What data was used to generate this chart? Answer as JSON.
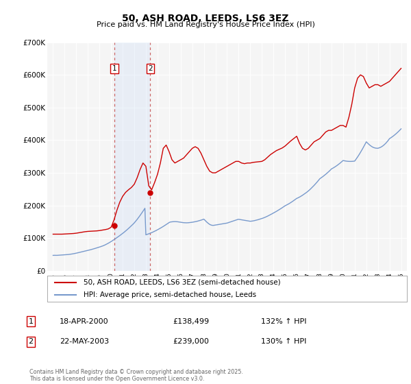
{
  "title": "50, ASH ROAD, LEEDS, LS6 3EZ",
  "subtitle": "Price paid vs. HM Land Registry's House Price Index (HPI)",
  "background_color": "#ffffff",
  "plot_bg_color": "#f5f5f5",
  "grid_color": "#ffffff",
  "red_line_color": "#cc0000",
  "blue_line_color": "#7799cc",
  "shade_color": "#ccddf5",
  "vline_color": "#cc6666",
  "sale1": {
    "date": "18-APR-2000",
    "price": 138499,
    "hpi_pct": "132%",
    "label": "1",
    "year": 2000.29
  },
  "sale2": {
    "date": "22-MAY-2003",
    "price": 239000,
    "hpi_pct": "130%",
    "label": "2",
    "year": 2003.38
  },
  "ylim": [
    0,
    700000
  ],
  "yticks": [
    0,
    100000,
    200000,
    300000,
    400000,
    500000,
    600000,
    700000
  ],
  "ytick_labels": [
    "£0",
    "£100K",
    "£200K",
    "£300K",
    "£400K",
    "£500K",
    "£600K",
    "£700K"
  ],
  "xlim": [
    1994.5,
    2025.5
  ],
  "xtick_years": [
    1995,
    1996,
    1997,
    1998,
    1999,
    2000,
    2001,
    2002,
    2003,
    2004,
    2005,
    2006,
    2007,
    2008,
    2009,
    2010,
    2011,
    2012,
    2013,
    2014,
    2015,
    2016,
    2017,
    2018,
    2019,
    2020,
    2021,
    2022,
    2023,
    2024,
    2025
  ],
  "legend_label_red": "50, ASH ROAD, LEEDS, LS6 3EZ (semi-detached house)",
  "legend_label_blue": "HPI: Average price, semi-detached house, Leeds",
  "footnote": "Contains HM Land Registry data © Crown copyright and database right 2025.\nThis data is licensed under the Open Government Licence v3.0.",
  "hpi_years": [
    1995.0,
    1995.083,
    1995.167,
    1995.25,
    1995.333,
    1995.417,
    1995.5,
    1995.583,
    1995.667,
    1995.75,
    1995.833,
    1995.917,
    1996.0,
    1996.083,
    1996.167,
    1996.25,
    1996.333,
    1996.417,
    1996.5,
    1996.583,
    1996.667,
    1996.75,
    1996.833,
    1996.917,
    1997.0,
    1997.083,
    1997.167,
    1997.25,
    1997.333,
    1997.417,
    1997.5,
    1997.583,
    1997.667,
    1997.75,
    1997.833,
    1997.917,
    1998.0,
    1998.083,
    1998.167,
    1998.25,
    1998.333,
    1998.417,
    1998.5,
    1998.583,
    1998.667,
    1998.75,
    1998.833,
    1998.917,
    1999.0,
    1999.083,
    1999.167,
    1999.25,
    1999.333,
    1999.417,
    1999.5,
    1999.583,
    1999.667,
    1999.75,
    1999.833,
    1999.917,
    2000.0,
    2000.083,
    2000.167,
    2000.25,
    2000.333,
    2000.417,
    2000.5,
    2000.583,
    2000.667,
    2000.75,
    2000.833,
    2000.917,
    2001.0,
    2001.083,
    2001.167,
    2001.25,
    2001.333,
    2001.417,
    2001.5,
    2001.583,
    2001.667,
    2001.75,
    2001.833,
    2001.917,
    2002.0,
    2002.083,
    2002.167,
    2002.25,
    2002.333,
    2002.417,
    2002.5,
    2002.583,
    2002.667,
    2002.75,
    2002.833,
    2002.917,
    2003.0,
    2003.083,
    2003.167,
    2003.25,
    2003.333,
    2003.417,
    2003.5,
    2003.583,
    2003.667,
    2003.75,
    2003.833,
    2003.917,
    2004.0,
    2004.083,
    2004.167,
    2004.25,
    2004.333,
    2004.417,
    2004.5,
    2004.583,
    2004.667,
    2004.75,
    2004.833,
    2004.917,
    2005.0,
    2005.083,
    2005.167,
    2005.25,
    2005.333,
    2005.417,
    2005.5,
    2005.583,
    2005.667,
    2005.75,
    2005.833,
    2005.917,
    2006.0,
    2006.083,
    2006.167,
    2006.25,
    2006.333,
    2006.417,
    2006.5,
    2006.583,
    2006.667,
    2006.75,
    2006.833,
    2006.917,
    2007.0,
    2007.083,
    2007.167,
    2007.25,
    2007.333,
    2007.417,
    2007.5,
    2007.583,
    2007.667,
    2007.75,
    2007.833,
    2007.917,
    2008.0,
    2008.083,
    2008.167,
    2008.25,
    2008.333,
    2008.417,
    2008.5,
    2008.583,
    2008.667,
    2008.75,
    2008.833,
    2008.917,
    2009.0,
    2009.083,
    2009.167,
    2009.25,
    2009.333,
    2009.417,
    2009.5,
    2009.583,
    2009.667,
    2009.75,
    2009.833,
    2009.917,
    2010.0,
    2010.083,
    2010.167,
    2010.25,
    2010.333,
    2010.417,
    2010.5,
    2010.583,
    2010.667,
    2010.75,
    2010.833,
    2010.917,
    2011.0,
    2011.083,
    2011.167,
    2011.25,
    2011.333,
    2011.417,
    2011.5,
    2011.583,
    2011.667,
    2011.75,
    2011.833,
    2011.917,
    2012.0,
    2012.083,
    2012.167,
    2012.25,
    2012.333,
    2012.417,
    2012.5,
    2012.583,
    2012.667,
    2012.75,
    2012.833,
    2012.917,
    2013.0,
    2013.083,
    2013.167,
    2013.25,
    2013.333,
    2013.417,
    2013.5,
    2013.583,
    2013.667,
    2013.75,
    2013.833,
    2013.917,
    2014.0,
    2014.083,
    2014.167,
    2014.25,
    2014.333,
    2014.417,
    2014.5,
    2014.583,
    2014.667,
    2014.75,
    2014.833,
    2014.917,
    2015.0,
    2015.083,
    2015.167,
    2015.25,
    2015.333,
    2015.417,
    2015.5,
    2015.583,
    2015.667,
    2015.75,
    2015.833,
    2015.917,
    2016.0,
    2016.083,
    2016.167,
    2016.25,
    2016.333,
    2016.417,
    2016.5,
    2016.583,
    2016.667,
    2016.75,
    2016.833,
    2016.917,
    2017.0,
    2017.083,
    2017.167,
    2017.25,
    2017.333,
    2017.417,
    2017.5,
    2017.583,
    2017.667,
    2017.75,
    2017.833,
    2017.917,
    2018.0,
    2018.083,
    2018.167,
    2018.25,
    2018.333,
    2018.417,
    2018.5,
    2018.583,
    2018.667,
    2018.75,
    2018.833,
    2018.917,
    2019.0,
    2019.083,
    2019.167,
    2019.25,
    2019.333,
    2019.417,
    2019.5,
    2019.583,
    2019.667,
    2019.75,
    2019.833,
    2019.917,
    2020.0,
    2020.083,
    2020.167,
    2020.25,
    2020.333,
    2020.417,
    2020.5,
    2020.583,
    2020.667,
    2020.75,
    2020.833,
    2020.917,
    2021.0,
    2021.083,
    2021.167,
    2021.25,
    2021.333,
    2021.417,
    2021.5,
    2021.583,
    2021.667,
    2021.75,
    2021.833,
    2021.917,
    2022.0,
    2022.083,
    2022.167,
    2022.25,
    2022.333,
    2022.417,
    2022.5,
    2022.583,
    2022.667,
    2022.75,
    2022.833,
    2022.917,
    2023.0,
    2023.083,
    2023.167,
    2023.25,
    2023.333,
    2023.417,
    2023.5,
    2023.583,
    2023.667,
    2023.75,
    2023.833,
    2023.917,
    2024.0,
    2024.083,
    2024.167,
    2024.25,
    2024.333,
    2024.417,
    2024.5,
    2024.583,
    2024.667,
    2024.75,
    2024.833,
    2024.917,
    2025.0
  ],
  "hpi_values": [
    47000,
    47200,
    47100,
    47000,
    47100,
    47300,
    47500,
    47800,
    48000,
    48100,
    48200,
    48400,
    48600,
    48900,
    49100,
    49400,
    49700,
    50100,
    50500,
    51000,
    51500,
    52000,
    52600,
    53200,
    53800,
    54500,
    55200,
    55900,
    56600,
    57300,
    58000,
    58700,
    59400,
    60100,
    60800,
    61500,
    62200,
    62900,
    63700,
    64500,
    65300,
    66100,
    67000,
    67900,
    68800,
    69700,
    70600,
    71500,
    72500,
    73500,
    74500,
    75500,
    76700,
    78000,
    79400,
    80900,
    82400,
    84000,
    85700,
    87500,
    89300,
    91200,
    93100,
    95100,
    97100,
    99200,
    101300,
    103400,
    105500,
    107700,
    109900,
    112100,
    114400,
    116700,
    119100,
    121600,
    124100,
    126700,
    129400,
    132100,
    134900,
    137700,
    140600,
    143500,
    146500,
    150000,
    153600,
    157300,
    161200,
    165200,
    169300,
    173500,
    177800,
    182200,
    186700,
    191300,
    110000,
    111000,
    112000,
    113000,
    114200,
    115400,
    116700,
    118000,
    119400,
    120800,
    122300,
    123800,
    125400,
    127000,
    128700,
    130400,
    132100,
    133900,
    135700,
    137600,
    139500,
    141400,
    143400,
    145400,
    147500,
    149000,
    149500,
    149900,
    150200,
    150400,
    150500,
    150400,
    150200,
    149900,
    149500,
    149000,
    148500,
    148000,
    147600,
    147200,
    147000,
    146900,
    146800,
    146900,
    147100,
    147400,
    147700,
    148100,
    148500,
    149000,
    149600,
    150200,
    150800,
    151500,
    152300,
    153100,
    154000,
    154900,
    155900,
    156900,
    158000,
    155000,
    152000,
    149000,
    146500,
    144000,
    142000,
    140500,
    139500,
    139000,
    139000,
    139500,
    140000,
    140500,
    141000,
    141500,
    142000,
    142500,
    143000,
    143500,
    144000,
    144500,
    145000,
    145500,
    146000,
    147000,
    148000,
    149000,
    150000,
    151000,
    152000,
    153000,
    154000,
    155000,
    156000,
    157000,
    157500,
    157000,
    156500,
    156000,
    155500,
    155000,
    154500,
    154000,
    153500,
    153000,
    152500,
    152000,
    151500,
    151800,
    152200,
    152700,
    153300,
    154000,
    154700,
    155500,
    156300,
    157200,
    158100,
    159000,
    160000,
    161000,
    162100,
    163300,
    164600,
    166000,
    167400,
    168900,
    170400,
    172000,
    173600,
    175200,
    176800,
    178400,
    180100,
    181800,
    183600,
    185400,
    187200,
    189100,
    191000,
    193000,
    195000,
    197000,
    199000,
    200500,
    202000,
    203600,
    205300,
    207100,
    209000,
    211000,
    213000,
    215100,
    217200,
    219400,
    221500,
    222800,
    224200,
    225800,
    227500,
    229300,
    231200,
    233200,
    235200,
    237300,
    239500,
    241800,
    244200,
    246800,
    249500,
    252400,
    255300,
    258300,
    261400,
    264600,
    267900,
    271300,
    274800,
    278400,
    282000,
    284000,
    286100,
    288300,
    290600,
    293000,
    295400,
    297900,
    300500,
    303200,
    306000,
    308900,
    311900,
    313500,
    315200,
    317000,
    318900,
    320900,
    323000,
    325200,
    327500,
    329900,
    332400,
    335000,
    337700,
    337000,
    336400,
    335900,
    335500,
    335200,
    335000,
    334900,
    334900,
    335000,
    335200,
    335500,
    335900,
    340000,
    344200,
    348500,
    353000,
    357700,
    362600,
    367600,
    372800,
    378100,
    383600,
    389200,
    395000,
    392000,
    389100,
    386400,
    383900,
    381700,
    379800,
    378200,
    377000,
    376100,
    375500,
    375200,
    375100,
    376000,
    377100,
    378500,
    380200,
    382200,
    384500,
    387100,
    390000,
    393200,
    396700,
    400500,
    404600,
    406500,
    408500,
    410600,
    412800,
    415200,
    417600,
    420200,
    422900,
    425700,
    428600,
    431600,
    434700
  ],
  "red_years": [
    1995.0,
    1995.25,
    1995.5,
    1995.75,
    1996.0,
    1996.25,
    1996.5,
    1996.75,
    1997.0,
    1997.25,
    1997.5,
    1997.75,
    1998.0,
    1998.25,
    1998.5,
    1998.75,
    1999.0,
    1999.25,
    1999.5,
    1999.75,
    2000.0,
    2000.25,
    2000.5,
    2000.75,
    2001.0,
    2001.25,
    2001.5,
    2001.75,
    2002.0,
    2002.25,
    2002.5,
    2002.75,
    2003.0,
    2003.25,
    2003.5,
    2003.75,
    2004.0,
    2004.25,
    2004.5,
    2004.75,
    2005.0,
    2005.25,
    2005.5,
    2005.75,
    2006.0,
    2006.25,
    2006.5,
    2006.75,
    2007.0,
    2007.25,
    2007.5,
    2007.75,
    2008.0,
    2008.25,
    2008.5,
    2008.75,
    2009.0,
    2009.25,
    2009.5,
    2009.75,
    2010.0,
    2010.25,
    2010.5,
    2010.75,
    2011.0,
    2011.25,
    2011.5,
    2011.75,
    2012.0,
    2012.25,
    2012.5,
    2012.75,
    2013.0,
    2013.25,
    2013.5,
    2013.75,
    2014.0,
    2014.25,
    2014.5,
    2014.75,
    2015.0,
    2015.25,
    2015.5,
    2015.75,
    2016.0,
    2016.25,
    2016.5,
    2016.75,
    2017.0,
    2017.25,
    2017.5,
    2017.75,
    2018.0,
    2018.25,
    2018.5,
    2018.75,
    2019.0,
    2019.25,
    2019.5,
    2019.75,
    2020.0,
    2020.25,
    2020.5,
    2020.75,
    2021.0,
    2021.25,
    2021.5,
    2021.75,
    2022.0,
    2022.25,
    2022.5,
    2022.75,
    2023.0,
    2023.25,
    2023.5,
    2023.75,
    2024.0,
    2024.25,
    2024.5,
    2024.75,
    2025.0
  ],
  "red_values": [
    112000,
    112000,
    112000,
    112000,
    112500,
    113000,
    113500,
    114000,
    115000,
    116500,
    118000,
    119500,
    120500,
    121000,
    121500,
    122000,
    123000,
    124500,
    126000,
    128000,
    133000,
    155000,
    185000,
    210000,
    228000,
    240000,
    248000,
    255000,
    265000,
    285000,
    310000,
    330000,
    320000,
    260000,
    248000,
    270000,
    295000,
    330000,
    375000,
    385000,
    365000,
    340000,
    330000,
    335000,
    340000,
    345000,
    355000,
    365000,
    375000,
    380000,
    375000,
    360000,
    340000,
    320000,
    305000,
    300000,
    300000,
    305000,
    310000,
    315000,
    320000,
    325000,
    330000,
    335000,
    335000,
    330000,
    328000,
    330000,
    330000,
    332000,
    333000,
    334000,
    335000,
    340000,
    348000,
    356000,
    362000,
    368000,
    372000,
    376000,
    382000,
    390000,
    398000,
    405000,
    412000,
    390000,
    375000,
    370000,
    375000,
    385000,
    395000,
    400000,
    405000,
    415000,
    425000,
    430000,
    430000,
    435000,
    440000,
    445000,
    445000,
    440000,
    470000,
    510000,
    560000,
    590000,
    600000,
    595000,
    575000,
    560000,
    565000,
    570000,
    570000,
    565000,
    570000,
    575000,
    580000,
    590000,
    600000,
    610000,
    620000
  ]
}
